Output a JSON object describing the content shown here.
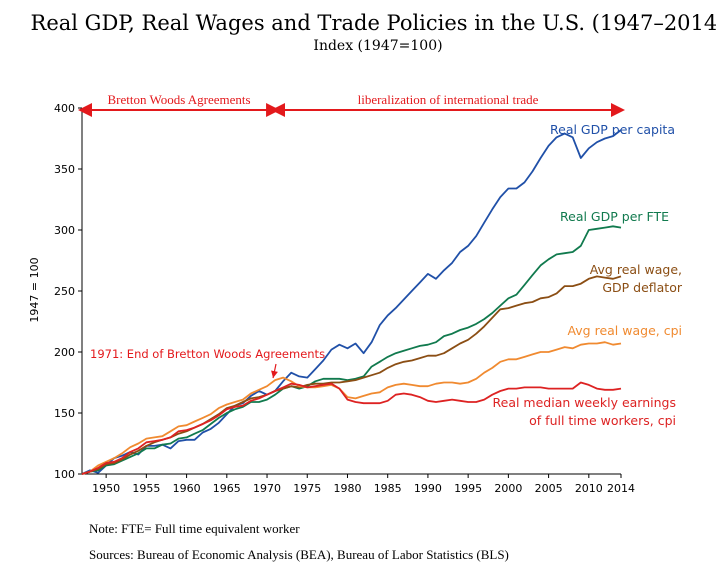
{
  "chart_data": {
    "type": "line",
    "title": "Real GDP, Real Wages and Trade Policies in the U.S. (1947–2014)",
    "subtitle": "Index (1947=100)",
    "ylabel": "1947 = 100",
    "xlabel": "",
    "xlim": [
      1947,
      2014
    ],
    "ylim": [
      100,
      400
    ],
    "x_ticks": [
      1950,
      1955,
      1960,
      1965,
      1970,
      1975,
      1980,
      1985,
      1990,
      1995,
      2000,
      2005,
      2010,
      2014
    ],
    "y_ticks": [
      100,
      150,
      200,
      250,
      300,
      350,
      400
    ],
    "eras": [
      {
        "label": "Bretton Woods Agreements",
        "from": 1947,
        "to": 1971
      },
      {
        "label": "liberalization of international trade",
        "from": 1971,
        "to": 2014
      }
    ],
    "annotation": {
      "text": "1971: End of Bretton Woods Agreements",
      "x": 1971,
      "y": 177
    },
    "series": [
      {
        "name": "Real GDP per capita",
        "color": "#2050a8",
        "x": [
          1947,
          1948,
          1949,
          1950,
          1951,
          1952,
          1953,
          1954,
          1955,
          1956,
          1957,
          1958,
          1959,
          1960,
          1961,
          1962,
          1963,
          1964,
          1965,
          1966,
          1967,
          1968,
          1969,
          1970,
          1971,
          1972,
          1973,
          1974,
          1975,
          1976,
          1977,
          1978,
          1979,
          1980,
          1981,
          1982,
          1983,
          1984,
          1985,
          1986,
          1987,
          1988,
          1989,
          1990,
          1991,
          1992,
          1993,
          1994,
          1995,
          1996,
          1997,
          1998,
          1999,
          2000,
          2001,
          2002,
          2003,
          2004,
          2005,
          2006,
          2007,
          2008,
          2009,
          2010,
          2011,
          2012,
          2013,
          2014
        ],
        "y": [
          100,
          103,
          101,
          107,
          113,
          115,
          118,
          116,
          123,
          123,
          124,
          121,
          127,
          128,
          128,
          134,
          137,
          142,
          149,
          156,
          158,
          164,
          168,
          165,
          168,
          176,
          183,
          180,
          179,
          186,
          193,
          202,
          206,
          203,
          207,
          199,
          208,
          222,
          230,
          236,
          243,
          250,
          257,
          264,
          260,
          267,
          273,
          282,
          287,
          295,
          306,
          317,
          327,
          334,
          334,
          339,
          348,
          359,
          369,
          376,
          379,
          376,
          359,
          367,
          372,
          375,
          377,
          382
        ]
      },
      {
        "name": "Real GDP per FTE",
        "color": "#117a4e",
        "x": [
          1947,
          1948,
          1949,
          1950,
          1951,
          1952,
          1953,
          1954,
          1955,
          1956,
          1957,
          1958,
          1959,
          1960,
          1961,
          1962,
          1963,
          1964,
          1965,
          1966,
          1967,
          1968,
          1969,
          1970,
          1971,
          1972,
          1973,
          1974,
          1975,
          1976,
          1977,
          1978,
          1979,
          1980,
          1981,
          1982,
          1983,
          1984,
          1985,
          1986,
          1987,
          1988,
          1989,
          1990,
          1991,
          1992,
          1993,
          1994,
          1995,
          1996,
          1997,
          1998,
          1999,
          2000,
          2001,
          2002,
          2003,
          2004,
          2005,
          2006,
          2007,
          2008,
          2009,
          2010,
          2011,
          2012,
          2013,
          2014
        ],
        "y": [
          100,
          102,
          103,
          107,
          108,
          111,
          114,
          117,
          121,
          121,
          124,
          125,
          129,
          130,
          133,
          136,
          141,
          146,
          150,
          153,
          155,
          159,
          159,
          161,
          165,
          170,
          172,
          170,
          172,
          176,
          178,
          178,
          178,
          177,
          178,
          180,
          188,
          192,
          196,
          199,
          201,
          203,
          205,
          206,
          208,
          213,
          215,
          218,
          220,
          223,
          227,
          232,
          238,
          244,
          247,
          255,
          263,
          271,
          276,
          280,
          281,
          282,
          287,
          300,
          301,
          302,
          303,
          302
        ]
      },
      {
        "name": "Avg real wage, GDP deflator",
        "color": "#8b4e14",
        "x": [
          1947,
          1948,
          1949,
          1950,
          1951,
          1952,
          1953,
          1954,
          1955,
          1956,
          1957,
          1958,
          1959,
          1960,
          1961,
          1962,
          1963,
          1964,
          1965,
          1966,
          1967,
          1968,
          1969,
          1970,
          1971,
          1972,
          1973,
          1974,
          1975,
          1976,
          1977,
          1978,
          1979,
          1980,
          1981,
          1982,
          1983,
          1984,
          1985,
          1986,
          1987,
          1988,
          1989,
          1990,
          1991,
          1992,
          1993,
          1994,
          1995,
          1996,
          1997,
          1998,
          1999,
          2000,
          2001,
          2002,
          2003,
          2004,
          2005,
          2006,
          2007,
          2008,
          2009,
          2010,
          2011,
          2012,
          2013,
          2014
        ],
        "y": [
          100,
          102,
          104,
          108,
          109,
          112,
          116,
          119,
          123,
          126,
          128,
          130,
          133,
          135,
          138,
          141,
          145,
          149,
          154,
          156,
          159,
          162,
          163,
          165,
          168,
          170,
          172,
          171,
          173,
          174,
          174,
          175,
          175,
          176,
          177,
          179,
          181,
          183,
          187,
          190,
          192,
          193,
          195,
          197,
          197,
          199,
          203,
          207,
          210,
          215,
          221,
          228,
          235,
          236,
          238,
          240,
          241,
          244,
          245,
          248,
          254,
          254,
          256,
          260,
          262,
          261,
          260,
          262
        ]
      },
      {
        "name": "Avg real wage, cpi",
        "color": "#f08a30",
        "x": [
          1947,
          1948,
          1949,
          1950,
          1951,
          1952,
          1953,
          1954,
          1955,
          1956,
          1957,
          1958,
          1959,
          1960,
          1961,
          1962,
          1963,
          1964,
          1965,
          1966,
          1967,
          1968,
          1969,
          1970,
          1971,
          1972,
          1973,
          1974,
          1975,
          1976,
          1977,
          1978,
          1979,
          1980,
          1981,
          1982,
          1983,
          1984,
          1985,
          1986,
          1987,
          1988,
          1989,
          1990,
          1991,
          1992,
          1993,
          1994,
          1995,
          1996,
          1997,
          1998,
          1999,
          2000,
          2001,
          2002,
          2003,
          2004,
          2005,
          2006,
          2007,
          2008,
          2009,
          2010,
          2011,
          2012,
          2013,
          2014
        ],
        "y": [
          100,
          102,
          107,
          110,
          113,
          117,
          122,
          125,
          129,
          130,
          131,
          135,
          139,
          140,
          143,
          146,
          149,
          154,
          157,
          159,
          161,
          166,
          169,
          172,
          177,
          179,
          176,
          172,
          171,
          171,
          172,
          173,
          170,
          163,
          162,
          164,
          166,
          167,
          171,
          173,
          174,
          173,
          172,
          172,
          174,
          175,
          175,
          174,
          175,
          178,
          183,
          187,
          192,
          194,
          194,
          196,
          198,
          200,
          200,
          202,
          204,
          203,
          206,
          207,
          207,
          208,
          206,
          207
        ]
      },
      {
        "name": "Real median weekly earnings of full time workers, cpi",
        "color": "#dd2222",
        "x": [
          1947,
          1948,
          1949,
          1950,
          1951,
          1952,
          1953,
          1954,
          1955,
          1956,
          1957,
          1958,
          1959,
          1960,
          1961,
          1962,
          1963,
          1964,
          1965,
          1966,
          1967,
          1968,
          1969,
          1970,
          1971,
          1972,
          1973,
          1974,
          1975,
          1976,
          1977,
          1978,
          1979,
          1980,
          1981,
          1982,
          1983,
          1984,
          1985,
          1986,
          1987,
          1988,
          1989,
          1990,
          1991,
          1992,
          1993,
          1994,
          1995,
          1996,
          1997,
          1998,
          1999,
          2000,
          2001,
          2002,
          2003,
          2004,
          2005,
          2006,
          2007,
          2008,
          2009,
          2010,
          2011,
          2012,
          2013,
          2014
        ],
        "y": [
          100,
          102,
          105,
          109,
          110,
          113,
          118,
          121,
          126,
          127,
          128,
          130,
          135,
          136,
          138,
          141,
          144,
          148,
          153,
          155,
          156,
          160,
          162,
          165,
          168,
          171,
          174,
          173,
          171,
          172,
          173,
          174,
          170,
          161,
          159,
          158,
          158,
          158,
          160,
          165,
          166,
          165,
          163,
          160,
          159,
          160,
          161,
          160,
          159,
          159,
          161,
          165,
          168,
          170,
          170,
          171,
          171,
          171,
          170,
          170,
          170,
          170,
          175,
          173,
          170,
          169,
          169,
          170
        ]
      }
    ],
    "series_labels": [
      {
        "lines": [
          "Real GDP per capita"
        ],
        "color": "#2050a8"
      },
      {
        "lines": [
          "Real GDP per FTE"
        ],
        "color": "#117a4e"
      },
      {
        "lines": [
          "Avg real wage,",
          "GDP deflator"
        ],
        "color": "#8b4e14"
      },
      {
        "lines": [
          "Avg real wage, cpi"
        ],
        "color": "#f08a30"
      },
      {
        "lines": [
          "Real median weekly earnings",
          "of full time workers, cpi"
        ],
        "color": "#dd2222"
      }
    ]
  },
  "notes": {
    "note": "Note: FTE= Full time equivalent worker",
    "sources": "Sources: Bureau of Economic Analysis (BEA), Bureau of Labor Statistics (BLS)"
  }
}
